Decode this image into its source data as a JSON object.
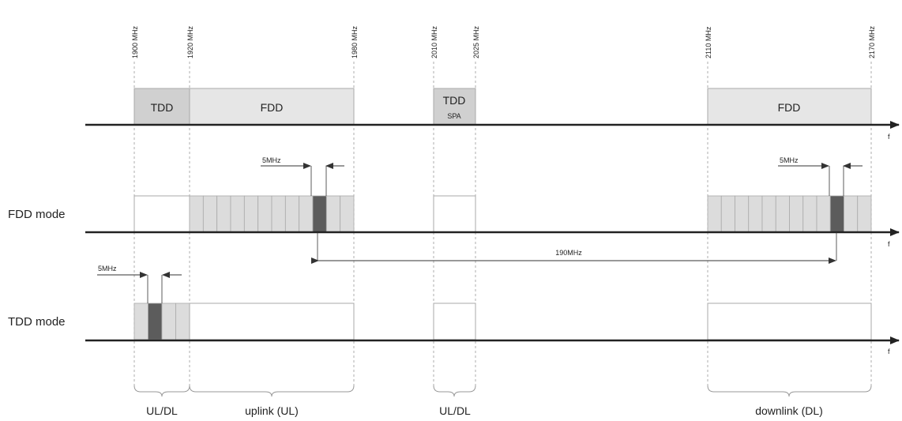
{
  "frequencies": [
    "1900 MHz",
    "1920 MHz",
    "1980 MHz",
    "2010 MHz",
    "2025 MHz",
    "2110 MHz",
    "2170 MHz"
  ],
  "top_blocks": {
    "tdd": "TDD",
    "fdd_uplink": "FDD",
    "tdd_spa_line1": "TDD",
    "tdd_spa_line2": "SPA",
    "fdd_downlink": "FDD"
  },
  "modes": {
    "fdd": "FDD mode",
    "tdd": "TDD mode"
  },
  "dimensions": {
    "uplink_channel": "5MHz",
    "downlink_channel": "5MHz",
    "tdd_channel": "5MHz",
    "duplex_spacing": "190MHz"
  },
  "axis_label": "f",
  "bottom_labels": {
    "ul_dl_1": "UL/DL",
    "uplink": "uplink (UL)",
    "ul_dl_2": "UL/DL",
    "downlink": "downlink (DL)"
  },
  "colors": {
    "axis": "#555555",
    "tdd_block": "#d0d0d0",
    "fdd_block": "#e6e6e6",
    "channel_highlight": "#5c5c5c",
    "channel_fill": "#dcdcdc"
  }
}
